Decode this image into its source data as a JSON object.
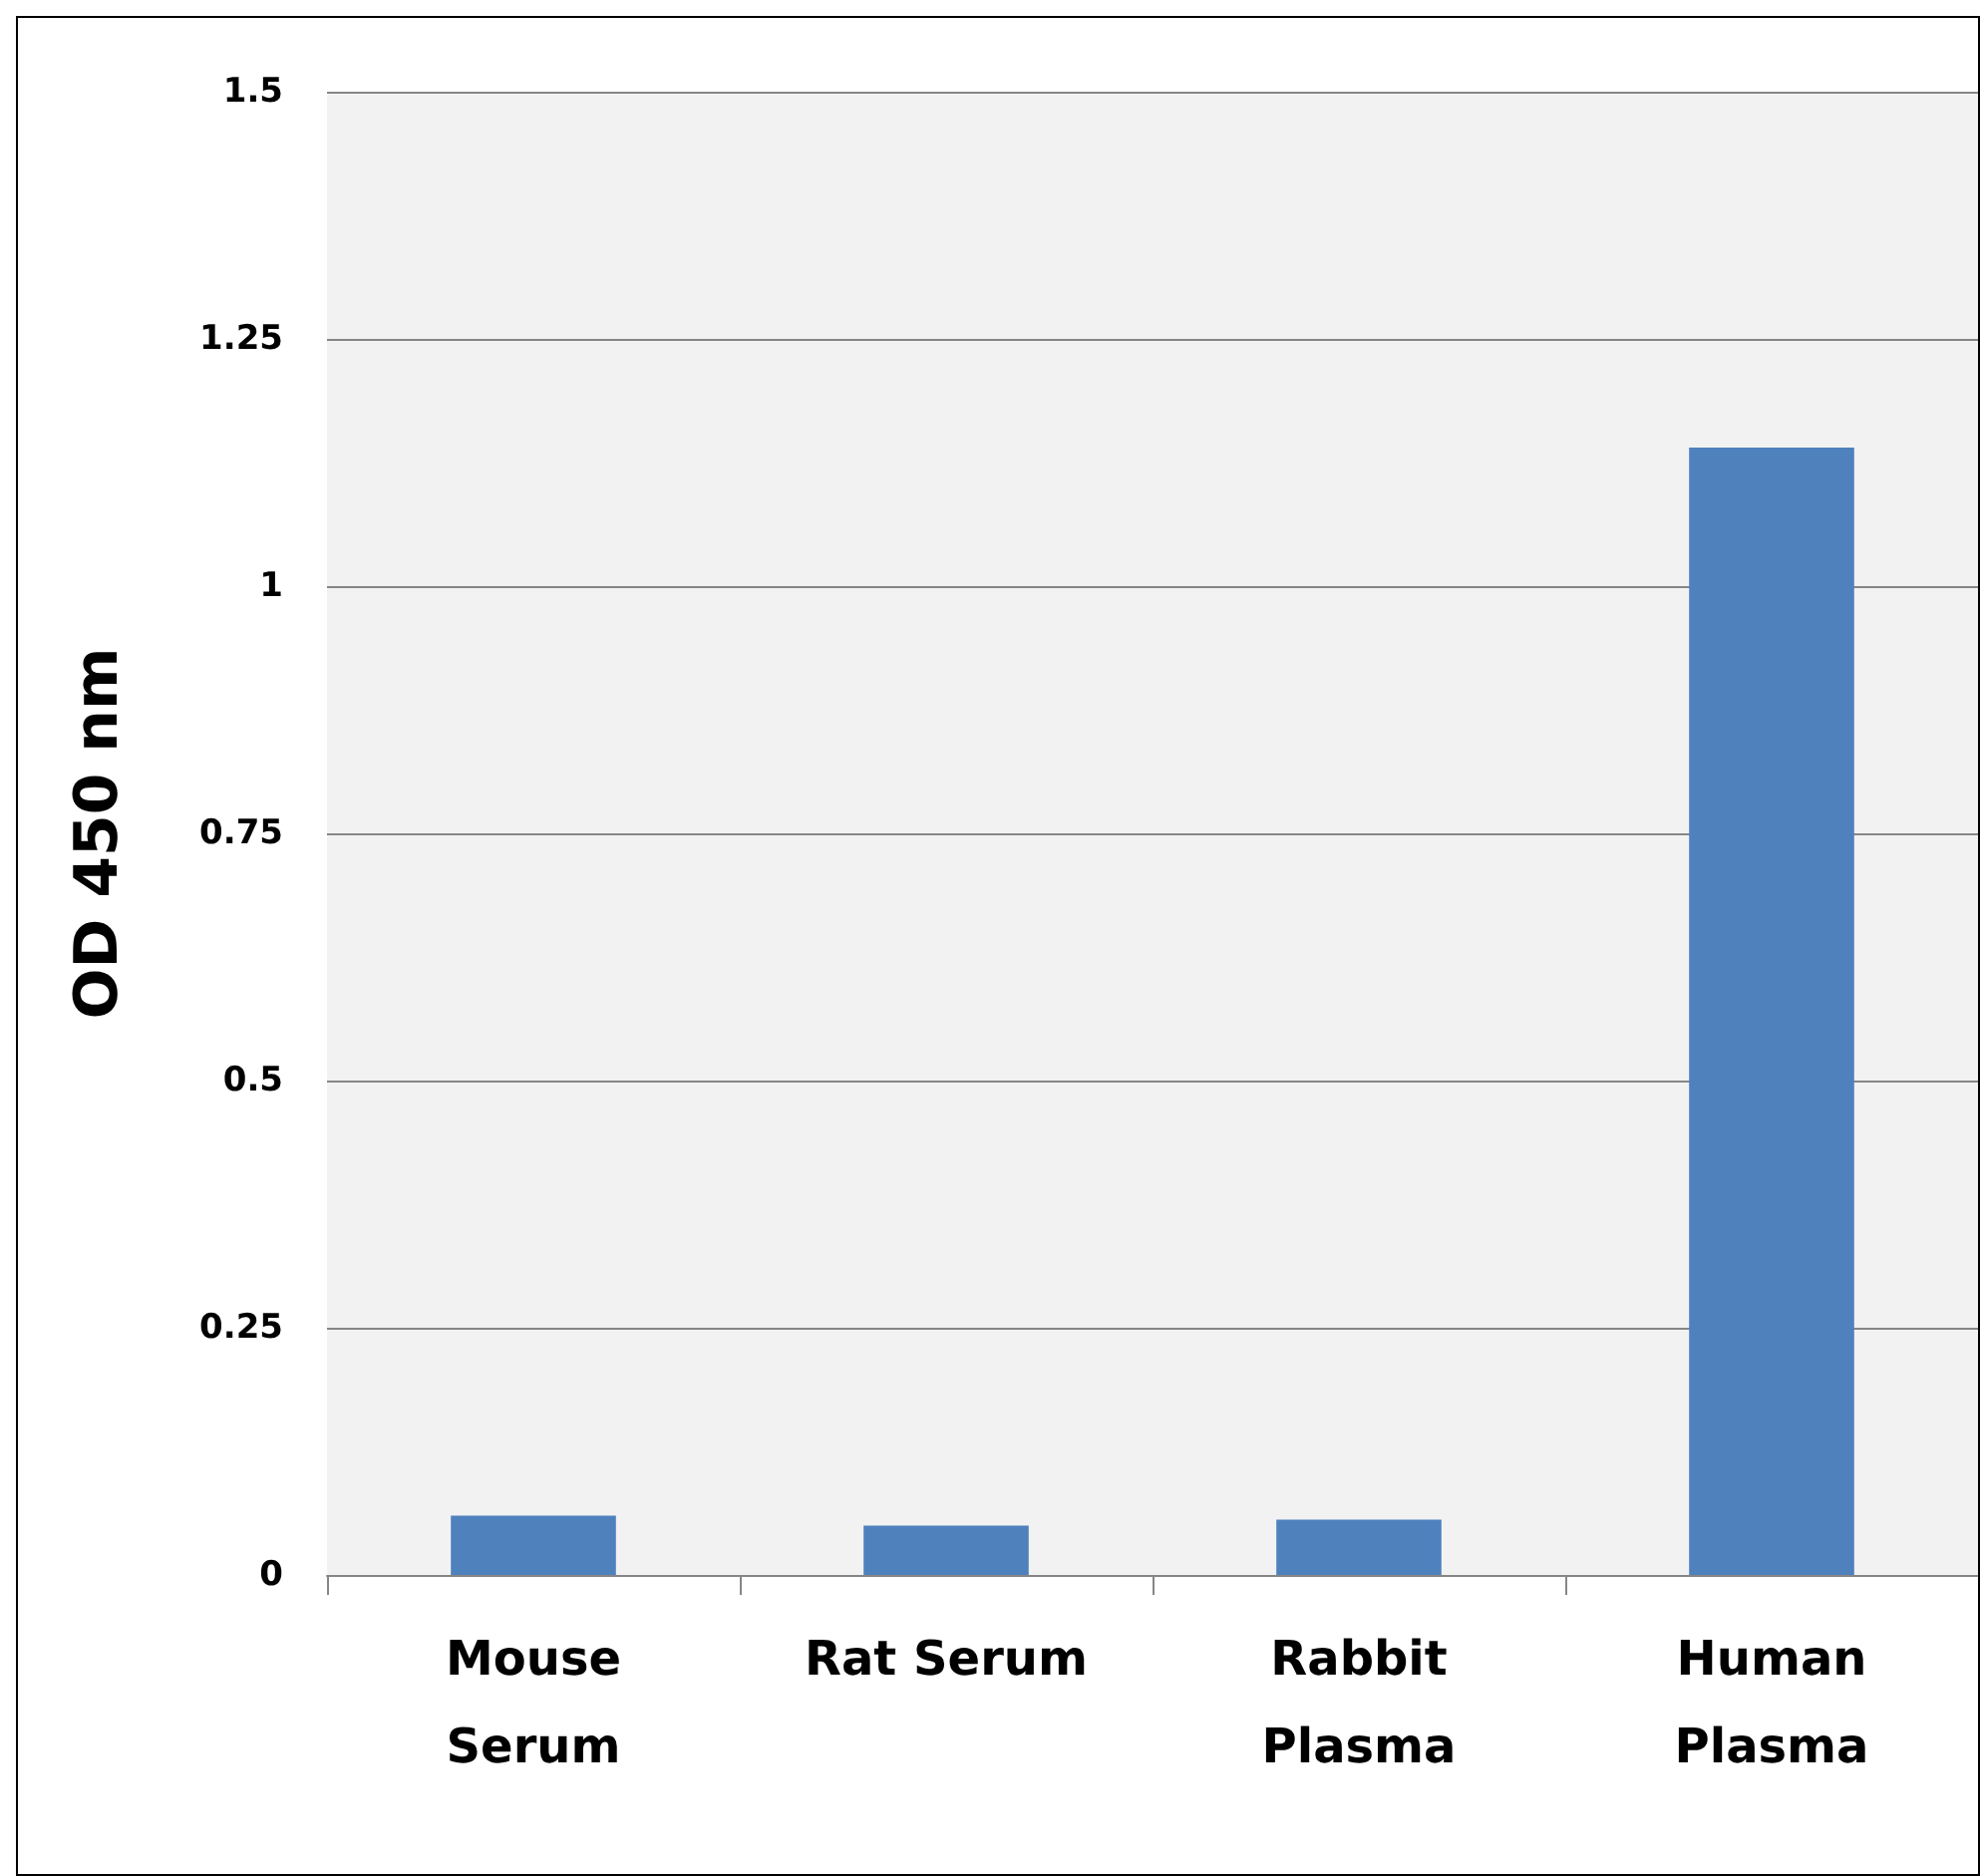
{
  "chart_data": {
    "type": "bar",
    "ylabel": "OD 450 nm",
    "categories": [
      "Mouse\nSerum",
      "Rat Serum",
      "Rabbit\nPlasma",
      "Human\nPlasma"
    ],
    "values": [
      0.06,
      0.05,
      0.056,
      1.14
    ],
    "color": "#4f81bd",
    "ylim": [
      0,
      1.5
    ],
    "yticks": [
      0,
      0.25,
      0.5,
      0.75,
      1,
      1.25,
      1.5
    ],
    "grid": "y"
  }
}
